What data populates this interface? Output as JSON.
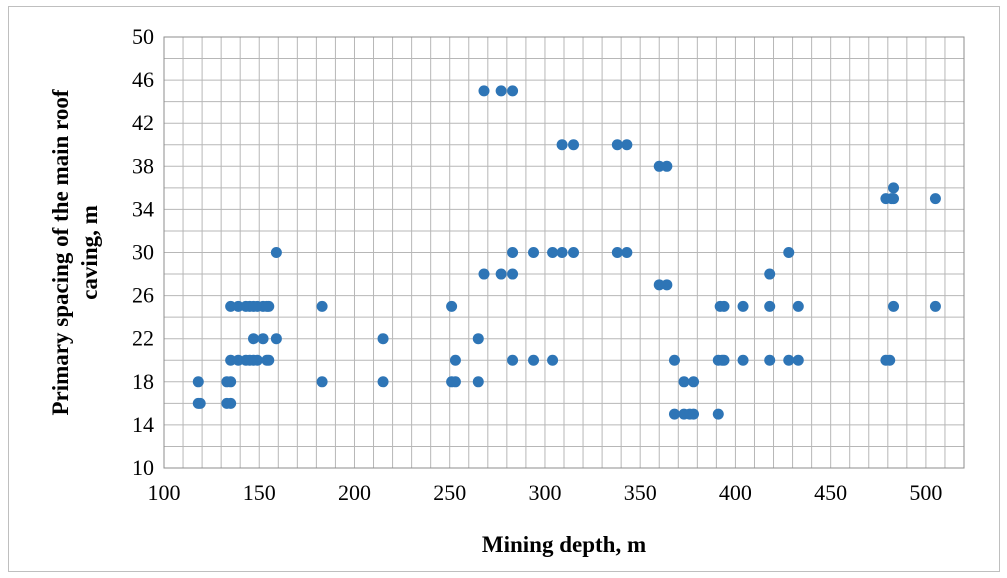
{
  "chart_data": {
    "type": "scatter",
    "title": "",
    "xlabel": "Mining depth, m",
    "ylabel_lines": [
      "Primary spacing of the main roof",
      "caving,  m"
    ],
    "xlim": [
      100,
      520
    ],
    "ylim": [
      10,
      50
    ],
    "x_ticks": [
      100,
      150,
      200,
      250,
      300,
      350,
      400,
      450,
      500
    ],
    "y_ticks": [
      10,
      14,
      18,
      22,
      26,
      30,
      34,
      38,
      42,
      46,
      50
    ],
    "x_minor_step": 10,
    "y_minor_step": 2,
    "grid": true,
    "legend": false,
    "marker_color": "#2e75b6",
    "grid_color": "#b7b7b7",
    "series": [
      {
        "points": [
          [
            118,
            18
          ],
          [
            118,
            16
          ],
          [
            119,
            16
          ],
          [
            133,
            18
          ],
          [
            133,
            16
          ],
          [
            135,
            25
          ],
          [
            135,
            20
          ],
          [
            135,
            18
          ],
          [
            135,
            16
          ],
          [
            139,
            25
          ],
          [
            139,
            20
          ],
          [
            143,
            25
          ],
          [
            143,
            20
          ],
          [
            145,
            25
          ],
          [
            145,
            20
          ],
          [
            147,
            25
          ],
          [
            147,
            22
          ],
          [
            147,
            20
          ],
          [
            149,
            25
          ],
          [
            149,
            20
          ],
          [
            152,
            25
          ],
          [
            152,
            22
          ],
          [
            154,
            25
          ],
          [
            154,
            20
          ],
          [
            155,
            25
          ],
          [
            155,
            20
          ],
          [
            159,
            30
          ],
          [
            159,
            22
          ],
          [
            183,
            25
          ],
          [
            183,
            18
          ],
          [
            215,
            22
          ],
          [
            215,
            18
          ],
          [
            251,
            25
          ],
          [
            251,
            18
          ],
          [
            253,
            20
          ],
          [
            253,
            18
          ],
          [
            265,
            22
          ],
          [
            265,
            18
          ],
          [
            268,
            45
          ],
          [
            268,
            28
          ],
          [
            277,
            45
          ],
          [
            277,
            28
          ],
          [
            283,
            45
          ],
          [
            283,
            30
          ],
          [
            283,
            28
          ],
          [
            283,
            20
          ],
          [
            294,
            30
          ],
          [
            294,
            20
          ],
          [
            304,
            30
          ],
          [
            304,
            20
          ],
          [
            309,
            40
          ],
          [
            309,
            30
          ],
          [
            315,
            40
          ],
          [
            315,
            30
          ],
          [
            338,
            40
          ],
          [
            338,
            30
          ],
          [
            343,
            40
          ],
          [
            343,
            30
          ],
          [
            360,
            38
          ],
          [
            360,
            27
          ],
          [
            364,
            38
          ],
          [
            364,
            27
          ],
          [
            368,
            20
          ],
          [
            368,
            15
          ],
          [
            373,
            18
          ],
          [
            373,
            15
          ],
          [
            376,
            15
          ],
          [
            378,
            18
          ],
          [
            378,
            15
          ],
          [
            391,
            20
          ],
          [
            391,
            15
          ],
          [
            392,
            25
          ],
          [
            393,
            20
          ],
          [
            394,
            25
          ],
          [
            394,
            20
          ],
          [
            404,
            25
          ],
          [
            404,
            20
          ],
          [
            418,
            28
          ],
          [
            418,
            25
          ],
          [
            418,
            20
          ],
          [
            428,
            30
          ],
          [
            428,
            20
          ],
          [
            433,
            25
          ],
          [
            433,
            20
          ],
          [
            479,
            35
          ],
          [
            479,
            20
          ],
          [
            481,
            20
          ],
          [
            482,
            35
          ],
          [
            483,
            36
          ],
          [
            483,
            35
          ],
          [
            483,
            25
          ],
          [
            505,
            35
          ],
          [
            505,
            25
          ]
        ]
      }
    ]
  }
}
